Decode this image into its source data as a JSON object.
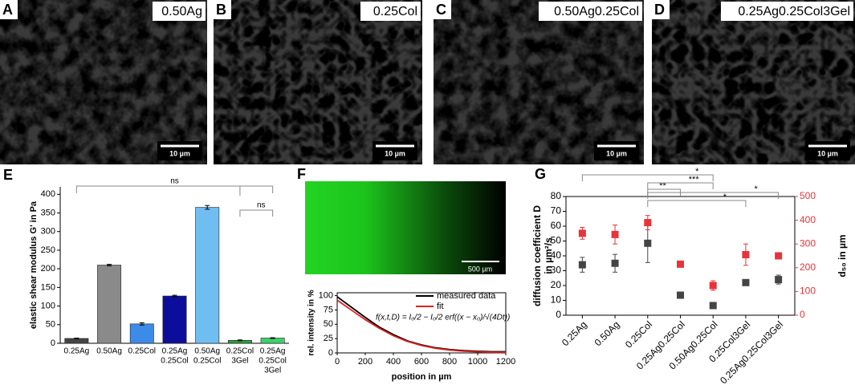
{
  "images": [
    {
      "letter": "A",
      "label": "0.50Ag",
      "scale_bar": "10 µm"
    },
    {
      "letter": "B",
      "label": "0.25Col",
      "scale_bar": "10 µm"
    },
    {
      "letter": "C",
      "label": "0.50Ag0.25Col",
      "scale_bar": "10 µm"
    },
    {
      "letter": "D",
      "label": "0.25Ag0.25Col3Gel",
      "scale_bar": "10 µm"
    }
  ],
  "chart_data": [
    {
      "panel": "E",
      "type": "bar",
      "ylabel": "elastic shear modulus G' in Pa",
      "categories": [
        [
          "0.25Ag"
        ],
        [
          "0.50Ag"
        ],
        [
          "0.25Col"
        ],
        [
          "0.25Ag",
          "0.25Col"
        ],
        [
          "0.50Ag",
          "0.25Col"
        ],
        [
          "0.25Col",
          "3Gel"
        ],
        [
          "0.25Ag",
          "0.25Col",
          "3Gel"
        ]
      ],
      "values": [
        13,
        210,
        52,
        127,
        365,
        8,
        14
      ],
      "errors": [
        1,
        2,
        3,
        2,
        5,
        1,
        1
      ],
      "colors": [
        "#444444",
        "#8a8a8a",
        "#3d8be8",
        "#0d0d9c",
        "#70bdf2",
        "#2e9e3e",
        "#3fd06a"
      ],
      "ylim": [
        0,
        420
      ],
      "yticks": [
        0,
        50,
        100,
        150,
        200,
        250,
        300,
        350,
        400
      ],
      "annotations": [
        "ns",
        "ns"
      ]
    },
    {
      "panel": "F",
      "type": "line",
      "scale_bar": "500 µm",
      "xlabel": "position in µm",
      "ylabel": "rel. intensity in %",
      "x": [
        0,
        100,
        200,
        300,
        400,
        500,
        600,
        700,
        800,
        900,
        1000,
        1100,
        1200
      ],
      "series": [
        {
          "name": "measured data",
          "color": "#000000",
          "values": [
            98,
            80,
            62,
            45,
            32,
            21,
            14,
            9,
            6,
            4,
            3,
            2,
            2
          ]
        },
        {
          "name": "fit",
          "color": "#e02020",
          "values": [
            92,
            75,
            58,
            43,
            30,
            20,
            13,
            8,
            5,
            3,
            2,
            1,
            1
          ]
        }
      ],
      "formula": "f(x,t,D) = I₀/2 − I₀/2 erf((x − x₀)/√(4Dt))",
      "xlim": [
        0,
        1200
      ],
      "xticks": [
        0,
        200,
        400,
        600,
        800,
        1000,
        1200
      ],
      "ylim": [
        0,
        105
      ],
      "yticks": [
        0,
        25,
        50,
        75,
        100
      ]
    },
    {
      "panel": "G",
      "type": "scatter",
      "ylabel": [
        "diffusion coefficient D",
        "in µm²/s"
      ],
      "y2label": "d₅₀ in µm",
      "categories": [
        "0.25Ag",
        "0.50Ag",
        "0.25Col",
        "0.25Ag0.25Col",
        "0.50Ag0.25Col",
        "0.25Col3Gel",
        "0.25Ag0.25Col3Gel"
      ],
      "series": [
        {
          "color": "#444444",
          "values": [
            34,
            35,
            48.5,
            13.5,
            6.5,
            22,
            24
          ],
          "errors": [
            5,
            6,
            13,
            1,
            1,
            2,
            3
          ]
        },
        {
          "color": "#e8333a",
          "axis": "y2",
          "values": [
            345,
            340,
            390,
            215,
            125,
            255,
            250
          ],
          "errors": [
            25,
            40,
            30,
            8,
            20,
            45,
            8
          ]
        }
      ],
      "ylim": [
        0,
        80
      ],
      "yticks": [
        0,
        10,
        20,
        30,
        40,
        50,
        60,
        70,
        80
      ],
      "y2lim": [
        0,
        500
      ],
      "y2ticks": [
        0,
        100,
        200,
        300,
        400,
        500
      ],
      "annotations": [
        "*",
        "**",
        "***",
        "*",
        "*"
      ]
    }
  ]
}
